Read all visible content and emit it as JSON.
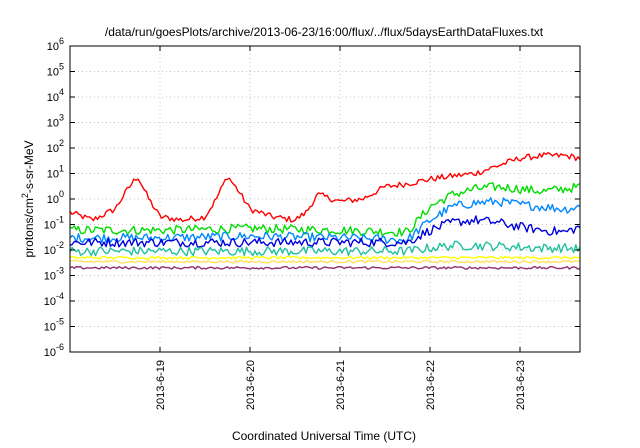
{
  "chart_data": {
    "type": "line",
    "title": "/data/run/goesPlots/archive/2013-06-23/16:00/flux/../flux/5daysEarthDataFluxes.txt",
    "xlabel": "Coordinated Universal Time (UTC)",
    "ylabel": "protons/cm2-s-sr-MeV",
    "ylabel_base": "protons/cm",
    "ylabel_sup": "2",
    "ylabel_rest": "-s-sr-MeV",
    "y_scale": "log",
    "ylim": [
      1e-06,
      1000000.0
    ],
    "xlim": [
      "2013-06-18 00:00",
      "2013-06-23 16:00"
    ],
    "grid": true,
    "legend": "none",
    "x_ticks": [
      "2013-6-19",
      "2013-6-20",
      "2013-6-21",
      "2013-6-22",
      "2013-6-23"
    ],
    "y_ticks": [
      {
        "base": "10",
        "exp": "-6"
      },
      {
        "base": "10",
        "exp": "-5"
      },
      {
        "base": "10",
        "exp": "-4"
      },
      {
        "base": "10",
        "exp": "-3"
      },
      {
        "base": "10",
        "exp": "-2"
      },
      {
        "base": "10",
        "exp": "-1"
      },
      {
        "base": "10",
        "exp": "0"
      },
      {
        "base": "10",
        "exp": "1"
      },
      {
        "base": "10",
        "exp": "2"
      },
      {
        "base": "10",
        "exp": "3"
      },
      {
        "base": "10",
        "exp": "4"
      },
      {
        "base": "10",
        "exp": "5"
      },
      {
        "base": "10",
        "exp": "6"
      }
    ],
    "series": [
      {
        "color": "#ff0000",
        "x": [
          "2013-06-18 00:00",
          "2013-06-18 06:00",
          "2013-06-18 12:00",
          "2013-06-18 15:00",
          "2013-06-18 18:00",
          "2013-06-18 21:00",
          "2013-06-19 00:00",
          "2013-06-19 06:00",
          "2013-06-19 12:00",
          "2013-06-19 15:00",
          "2013-06-19 18:00",
          "2013-06-19 21:00",
          "2013-06-20 00:00",
          "2013-06-20 06:00",
          "2013-06-20 12:00",
          "2013-06-20 15:00",
          "2013-06-20 18:00",
          "2013-06-21 00:00",
          "2013-06-21 06:00",
          "2013-06-21 12:00",
          "2013-06-21 18:00",
          "2013-06-22 00:00",
          "2013-06-22 06:00",
          "2013-06-22 12:00",
          "2013-06-22 18:00",
          "2013-06-23 00:00",
          "2013-06-23 06:00",
          "2013-06-23 12:00",
          "2013-06-23 16:00"
        ],
        "values": [
          0.3,
          0.15,
          0.4,
          2,
          8,
          1,
          0.2,
          0.15,
          0.2,
          1,
          8,
          2,
          0.4,
          0.2,
          0.15,
          0.3,
          1.5,
          0.8,
          1,
          3,
          4,
          6,
          8,
          10,
          20,
          40,
          50,
          50,
          40
        ]
      },
      {
        "color": "#00dd00",
        "x": [
          "2013-06-18 00:00",
          "2013-06-19 00:00",
          "2013-06-20 00:00",
          "2013-06-21 00:00",
          "2013-06-21 18:00",
          "2013-06-22 00:00",
          "2013-06-22 06:00",
          "2013-06-22 12:00",
          "2013-06-22 18:00",
          "2013-06-23 00:00",
          "2013-06-23 06:00",
          "2013-06-23 12:00",
          "2013-06-23 16:00"
        ],
        "values": [
          0.06,
          0.06,
          0.07,
          0.06,
          0.05,
          0.5,
          1.5,
          2.5,
          3,
          2.5,
          2,
          2.5,
          3
        ]
      },
      {
        "color": "#0088ff",
        "x": [
          "2013-06-18 00:00",
          "2013-06-19 00:00",
          "2013-06-20 00:00",
          "2013-06-21 00:00",
          "2013-06-21 18:00",
          "2013-06-22 00:00",
          "2013-06-22 06:00",
          "2013-06-22 12:00",
          "2013-06-22 18:00",
          "2013-06-23 00:00",
          "2013-06-23 06:00",
          "2013-06-23 12:00",
          "2013-06-23 16:00"
        ],
        "values": [
          0.03,
          0.03,
          0.035,
          0.03,
          0.025,
          0.15,
          0.5,
          0.7,
          0.8,
          0.6,
          0.5,
          0.4,
          0.5
        ]
      },
      {
        "color": "#0000dd",
        "x": [
          "2013-06-18 00:00",
          "2013-06-19 00:00",
          "2013-06-20 00:00",
          "2013-06-21 00:00",
          "2013-06-21 18:00",
          "2013-06-22 00:00",
          "2013-06-22 06:00",
          "2013-06-22 12:00",
          "2013-06-22 18:00",
          "2013-06-23 00:00",
          "2013-06-23 06:00",
          "2013-06-23 12:00",
          "2013-06-23 16:00"
        ],
        "values": [
          0.02,
          0.02,
          0.02,
          0.02,
          0.02,
          0.06,
          0.12,
          0.15,
          0.12,
          0.08,
          0.06,
          0.05,
          0.08
        ]
      },
      {
        "color": "#20c0a0",
        "x": [
          "2013-06-18 00:00",
          "2013-06-19 00:00",
          "2013-06-20 00:00",
          "2013-06-21 00:00",
          "2013-06-21 18:00",
          "2013-06-22 00:00",
          "2013-06-22 06:00",
          "2013-06-22 12:00",
          "2013-06-22 18:00",
          "2013-06-23 00:00",
          "2013-06-23 06:00",
          "2013-06-23 12:00",
          "2013-06-23 16:00"
        ],
        "values": [
          0.009,
          0.009,
          0.009,
          0.009,
          0.009,
          0.012,
          0.015,
          0.015,
          0.014,
          0.013,
          0.012,
          0.012,
          0.011
        ]
      },
      {
        "color": "#ffff00",
        "x": [
          "2013-06-18 00:00",
          "2013-06-19 00:00",
          "2013-06-20 00:00",
          "2013-06-21 00:00",
          "2013-06-22 00:00",
          "2013-06-23 00:00",
          "2013-06-23 16:00"
        ],
        "values": [
          0.005,
          0.005,
          0.005,
          0.005,
          0.005,
          0.005,
          0.005
        ]
      },
      {
        "color": "#ffe060",
        "x": [
          "2013-06-18 00:00",
          "2013-06-19 00:00",
          "2013-06-20 00:00",
          "2013-06-21 00:00",
          "2013-06-22 00:00",
          "2013-06-23 00:00",
          "2013-06-23 16:00"
        ],
        "values": [
          0.0035,
          0.0035,
          0.0035,
          0.0035,
          0.0035,
          0.0035,
          0.0035
        ]
      },
      {
        "color": "#903070",
        "x": [
          "2013-06-18 00:00",
          "2013-06-19 00:00",
          "2013-06-20 00:00",
          "2013-06-21 00:00",
          "2013-06-22 00:00",
          "2013-06-23 00:00",
          "2013-06-23 16:00"
        ],
        "values": [
          0.002,
          0.002,
          0.002,
          0.002,
          0.002,
          0.002,
          0.002
        ]
      }
    ]
  }
}
